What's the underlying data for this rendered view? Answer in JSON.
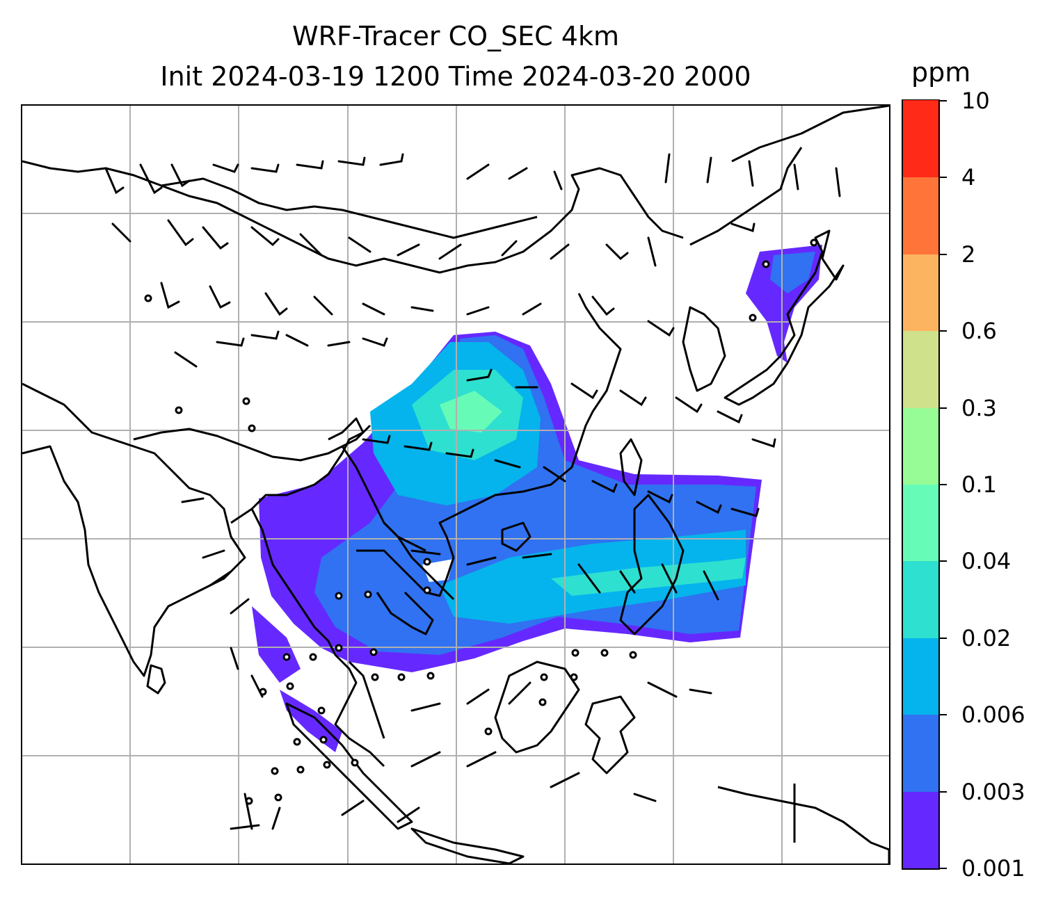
{
  "title_line1": "WRF-Tracer CO_SEC 4km",
  "title_line2": "Init 2024-03-19 1200 Time 2024-03-20 2000",
  "colorbar": {
    "title": "ppm",
    "tick_labels": [
      "0.001",
      "0.003",
      "0.006",
      "0.02",
      "0.04",
      "0.1",
      "0.3",
      "0.6",
      "2",
      "4",
      "10"
    ],
    "colors": [
      "#6529ff",
      "#3072f1",
      "#05b4ec",
      "#2ee0d0",
      "#67fbb8",
      "#97fc95",
      "#cfe18a",
      "#fdb461",
      "#ff7438",
      "#ff2a18"
    ]
  },
  "map": {
    "variable": "CO_SEC tracer concentration",
    "units": "ppm",
    "overlay": "wind barbs",
    "gridlines": true,
    "coastline_color": "#000000",
    "grid_color": "#b0b0b0"
  }
}
